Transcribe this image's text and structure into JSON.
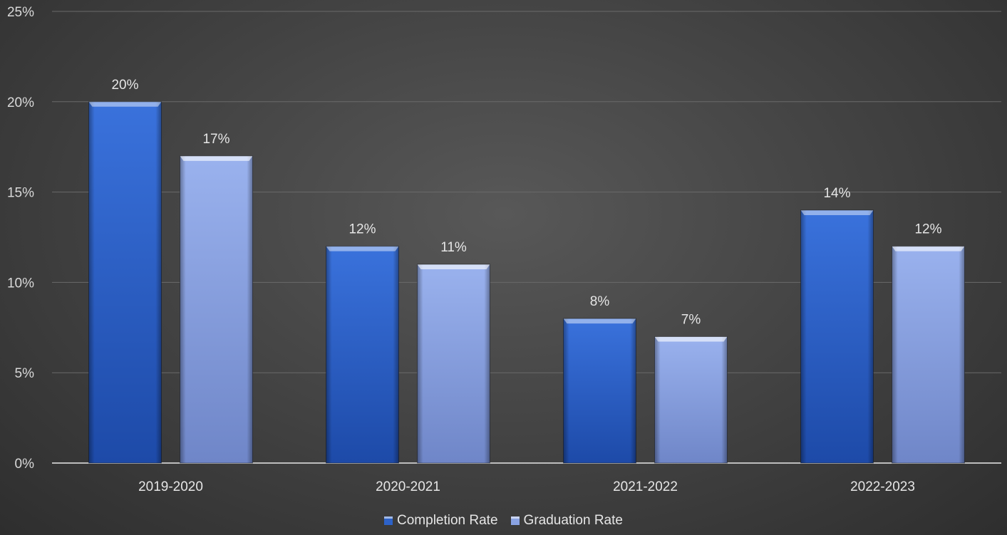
{
  "chart_data": {
    "type": "bar",
    "categories": [
      "2019-2020",
      "2020-2021",
      "2021-2022",
      "2022-2023"
    ],
    "series": [
      {
        "name": "Completion Rate",
        "values": [
          20,
          12,
          8,
          14
        ],
        "labels": [
          "20%",
          "12%",
          "8%",
          "14%"
        ],
        "color": "#2d62c8"
      },
      {
        "name": "Graduation Rate",
        "values": [
          17,
          11,
          7,
          12
        ],
        "labels": [
          "17%",
          "11%",
          "7%",
          "12%"
        ],
        "color": "#8aa3e2"
      }
    ],
    "ylim": [
      0,
      25
    ],
    "yticks": [
      0,
      5,
      10,
      15,
      20,
      25
    ],
    "ytick_labels": [
      "0%",
      "5%",
      "10%",
      "15%",
      "20%",
      "25%"
    ],
    "title": "",
    "xlabel": "",
    "ylabel": "",
    "grid": true,
    "legend_position": "bottom"
  },
  "legend": {
    "items": [
      {
        "label": "Completion Rate",
        "color": "#2d62c8"
      },
      {
        "label": "Graduation Rate",
        "color": "#8aa3e2"
      }
    ]
  }
}
